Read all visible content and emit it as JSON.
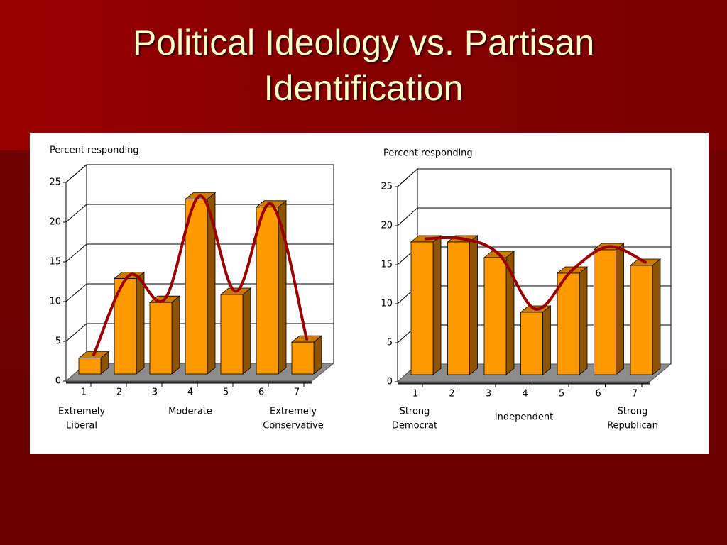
{
  "title": "Political Ideology vs. Partisan Identification",
  "chart_data": [
    {
      "type": "bar3d",
      "ylabel": "Percent responding",
      "categories": [
        "1",
        "2",
        "3",
        "4",
        "5",
        "6",
        "7"
      ],
      "values": [
        2,
        12,
        9,
        22,
        10,
        21,
        4
      ],
      "color": "#ff9900",
      "curve_color": "#990000",
      "ylim": [
        0,
        25
      ],
      "yticks": [
        0,
        5,
        10,
        15,
        20,
        25
      ],
      "grid": true,
      "annotations": [
        [
          "Extremely",
          "Liberal"
        ],
        [
          "Moderate"
        ],
        [
          "Extremely",
          "Conservative"
        ]
      ]
    },
    {
      "type": "bar3d",
      "ylabel": "Percent responding",
      "categories": [
        "1",
        "2",
        "3",
        "4",
        "5",
        "6",
        "7"
      ],
      "values": [
        17,
        17,
        15,
        8,
        13,
        16,
        14
      ],
      "color": "#ff9900",
      "curve_color": "#990000",
      "ylim": [
        0,
        25
      ],
      "yticks": [
        0,
        5,
        10,
        15,
        20,
        25
      ],
      "grid": true,
      "annotations": [
        [
          "Strong",
          "Democrat"
        ],
        [
          "Independent"
        ],
        [
          "Strong",
          "Republican"
        ]
      ]
    }
  ]
}
